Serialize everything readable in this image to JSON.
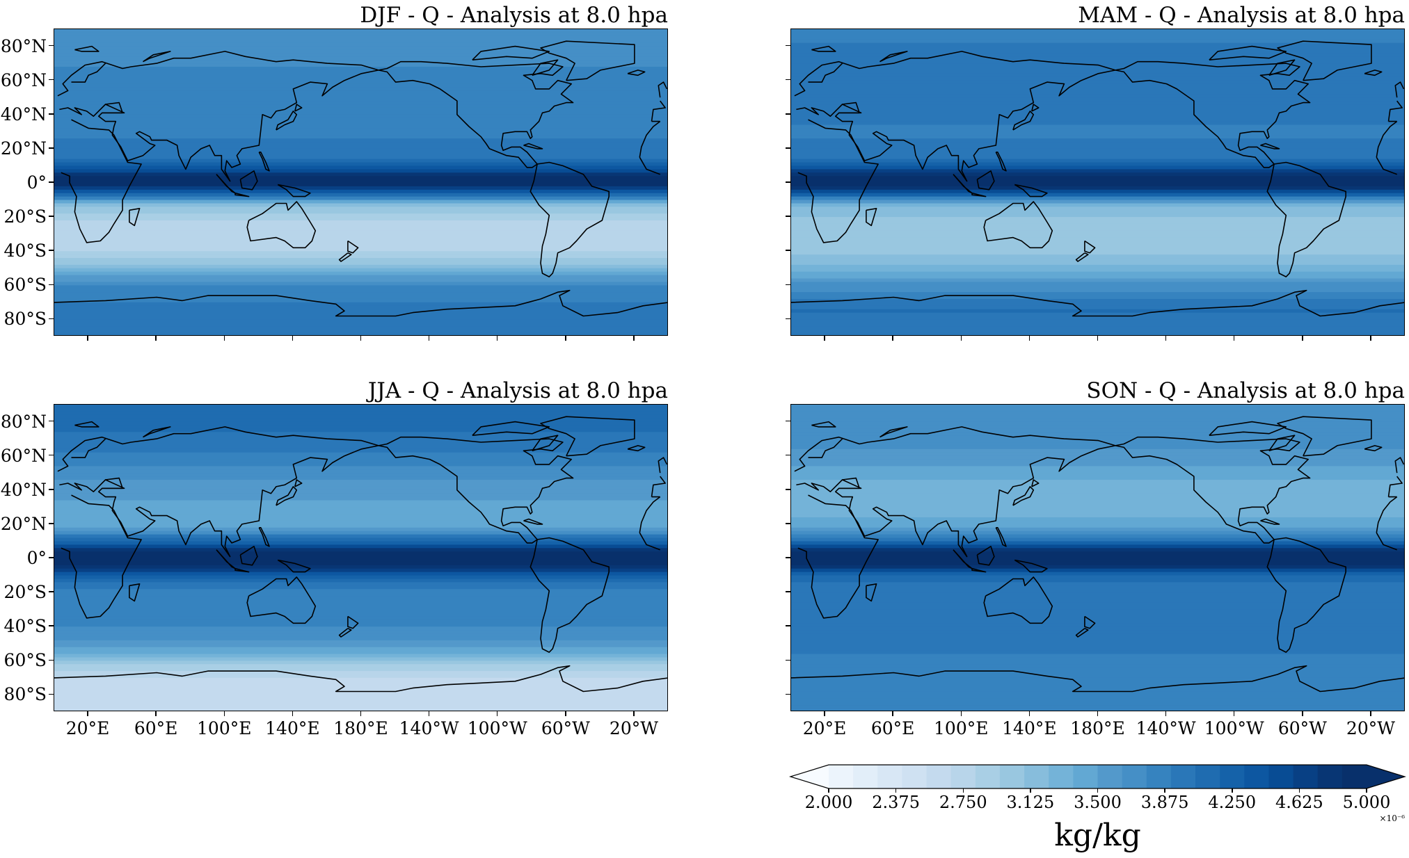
{
  "figure": {
    "panels": [
      {
        "id": "djf",
        "title": "DJF - Q - Analysis at 8.0 hpa",
        "season": "DJF",
        "bands": [
          {
            "lat": 90,
            "v": 3.65
          },
          {
            "lat": 75,
            "v": 3.7
          },
          {
            "lat": 60,
            "v": 3.8
          },
          {
            "lat": 45,
            "v": 3.85
          },
          {
            "lat": 30,
            "v": 3.85
          },
          {
            "lat": 15,
            "v": 3.95
          },
          {
            "lat": 8,
            "v": 4.4
          },
          {
            "lat": 3,
            "v": 4.85
          },
          {
            "lat": 0,
            "v": 4.9
          },
          {
            "lat": -3,
            "v": 4.6
          },
          {
            "lat": -8,
            "v": 3.9
          },
          {
            "lat": -13,
            "v": 3.2
          },
          {
            "lat": -20,
            "v": 2.9
          },
          {
            "lat": -30,
            "v": 2.8
          },
          {
            "lat": -40,
            "v": 2.85
          },
          {
            "lat": -48,
            "v": 3.1
          },
          {
            "lat": -55,
            "v": 3.5
          },
          {
            "lat": -62,
            "v": 3.8
          },
          {
            "lat": -72,
            "v": 3.9
          },
          {
            "lat": -90,
            "v": 3.9
          }
        ]
      },
      {
        "id": "mam",
        "title": "MAM - Q - Analysis at 8.0 hpa",
        "season": "MAM",
        "bands": [
          {
            "lat": 90,
            "v": 3.8
          },
          {
            "lat": 75,
            "v": 3.95
          },
          {
            "lat": 60,
            "v": 4.0
          },
          {
            "lat": 45,
            "v": 3.95
          },
          {
            "lat": 30,
            "v": 3.85
          },
          {
            "lat": 15,
            "v": 3.95
          },
          {
            "lat": 8,
            "v": 4.4
          },
          {
            "lat": 3,
            "v": 4.9
          },
          {
            "lat": 0,
            "v": 4.95
          },
          {
            "lat": -3,
            "v": 4.7
          },
          {
            "lat": -8,
            "v": 4.0
          },
          {
            "lat": -13,
            "v": 3.3
          },
          {
            "lat": -20,
            "v": 3.1
          },
          {
            "lat": -30,
            "v": 3.0
          },
          {
            "lat": -40,
            "v": 3.1
          },
          {
            "lat": -50,
            "v": 3.3
          },
          {
            "lat": -58,
            "v": 3.6
          },
          {
            "lat": -65,
            "v": 3.8
          },
          {
            "lat": -75,
            "v": 4.0
          },
          {
            "lat": -90,
            "v": 3.9
          }
        ]
      },
      {
        "id": "jja",
        "title": "JJA - Q - Analysis at 8.0 hpa",
        "season": "JJA",
        "bands": [
          {
            "lat": 90,
            "v": 4.0
          },
          {
            "lat": 75,
            "v": 4.0
          },
          {
            "lat": 60,
            "v": 3.85
          },
          {
            "lat": 45,
            "v": 3.6
          },
          {
            "lat": 30,
            "v": 3.45
          },
          {
            "lat": 18,
            "v": 3.5
          },
          {
            "lat": 10,
            "v": 4.1
          },
          {
            "lat": 4,
            "v": 4.8
          },
          {
            "lat": 0,
            "v": 4.95
          },
          {
            "lat": -4,
            "v": 4.8
          },
          {
            "lat": -9,
            "v": 4.3
          },
          {
            "lat": -15,
            "v": 3.9
          },
          {
            "lat": -25,
            "v": 3.8
          },
          {
            "lat": -35,
            "v": 3.8
          },
          {
            "lat": -45,
            "v": 3.7
          },
          {
            "lat": -55,
            "v": 3.4
          },
          {
            "lat": -62,
            "v": 3.0
          },
          {
            "lat": -70,
            "v": 2.75
          },
          {
            "lat": -80,
            "v": 2.7
          },
          {
            "lat": -90,
            "v": 2.65
          }
        ]
      },
      {
        "id": "son",
        "title": "SON - Q - Analysis at 8.0 hpa",
        "season": "SON",
        "bands": [
          {
            "lat": 90,
            "v": 3.65
          },
          {
            "lat": 75,
            "v": 3.7
          },
          {
            "lat": 60,
            "v": 3.6
          },
          {
            "lat": 45,
            "v": 3.35
          },
          {
            "lat": 30,
            "v": 3.3
          },
          {
            "lat": 18,
            "v": 3.45
          },
          {
            "lat": 10,
            "v": 4.0
          },
          {
            "lat": 4,
            "v": 4.75
          },
          {
            "lat": 0,
            "v": 4.9
          },
          {
            "lat": -4,
            "v": 4.75
          },
          {
            "lat": -9,
            "v": 4.2
          },
          {
            "lat": -15,
            "v": 3.95
          },
          {
            "lat": -25,
            "v": 3.9
          },
          {
            "lat": -35,
            "v": 3.9
          },
          {
            "lat": -45,
            "v": 3.95
          },
          {
            "lat": -55,
            "v": 3.9
          },
          {
            "lat": -62,
            "v": 3.8
          },
          {
            "lat": -72,
            "v": 3.85
          },
          {
            "lat": -90,
            "v": 3.8
          }
        ]
      }
    ],
    "lat_ticks": [
      "80°N",
      "60°N",
      "40°N",
      "20°N",
      "0°",
      "20°S",
      "40°S",
      "60°S",
      "80°S"
    ],
    "lat_values": [
      80,
      60,
      40,
      20,
      0,
      -20,
      -40,
      -60,
      -80
    ],
    "lon_ticks": [
      "20°E",
      "60°E",
      "100°E",
      "140°E",
      "180°E",
      "140°W",
      "100°W",
      "60°W",
      "20°W"
    ],
    "lon_values": [
      20,
      60,
      100,
      140,
      180,
      220,
      260,
      300,
      340
    ],
    "lon_range": [
      0,
      360
    ],
    "lat_range": [
      -90,
      90
    ],
    "colorbar": {
      "vmin": 2.0,
      "vmax": 5.0,
      "levels": 24,
      "tick_labels": [
        "2.000",
        "2.375",
        "2.750",
        "3.125",
        "3.500",
        "3.875",
        "4.250",
        "4.625",
        "5.000"
      ],
      "tick_values": [
        2.0,
        2.375,
        2.75,
        3.125,
        3.5,
        3.875,
        4.25,
        4.625,
        5.0
      ],
      "multiplier": "×10⁻⁶",
      "units": "kg/kg",
      "colormap": "Blues",
      "colors": [
        "#f7fbff",
        "#ecf4fc",
        "#e2eef9",
        "#d8e7f5",
        "#cfe1f2",
        "#c4daee",
        "#b8d5ea",
        "#a9cfe5",
        "#99c7e0",
        "#87bddc",
        "#74b3d8",
        "#62a8d3",
        "#5399cb",
        "#458fc6",
        "#3683bf",
        "#2a77b8",
        "#1f6cb0",
        "#1562a9",
        "#0d57a1",
        "#084c94",
        "#084084",
        "#083674",
        "#08306b",
        "#08306b"
      ]
    }
  }
}
